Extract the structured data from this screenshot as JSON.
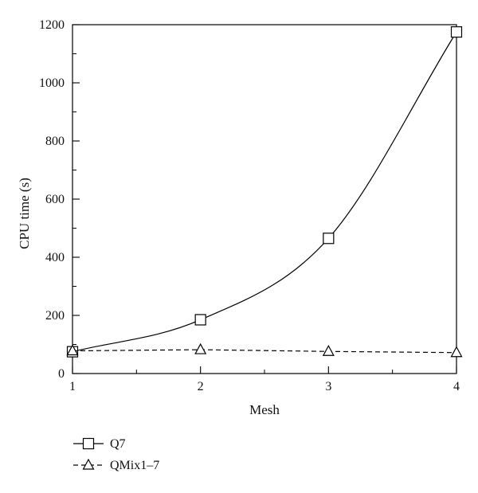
{
  "chart_data": {
    "type": "line",
    "xlabel": "Mesh",
    "ylabel": "CPU time (s)",
    "xlim": [
      1,
      4
    ],
    "ylim": [
      0,
      1200
    ],
    "x_ticks": [
      "1",
      "2",
      "3",
      "4"
    ],
    "y_ticks": [
      "0",
      "200",
      "400",
      "600",
      "800",
      "1000",
      "1200"
    ],
    "grid": false,
    "legend_position": "bottom-left",
    "x": [
      1,
      2,
      3,
      4
    ],
    "series": [
      {
        "name": "Q7",
        "values": [
          75,
          185,
          465,
          1175
        ],
        "marker": "square",
        "line": "solid",
        "color": "#000000"
      },
      {
        "name": "QMix1–7",
        "values": [
          78,
          82,
          76,
          72
        ],
        "marker": "triangle",
        "line": "dashed",
        "color": "#000000"
      }
    ]
  }
}
